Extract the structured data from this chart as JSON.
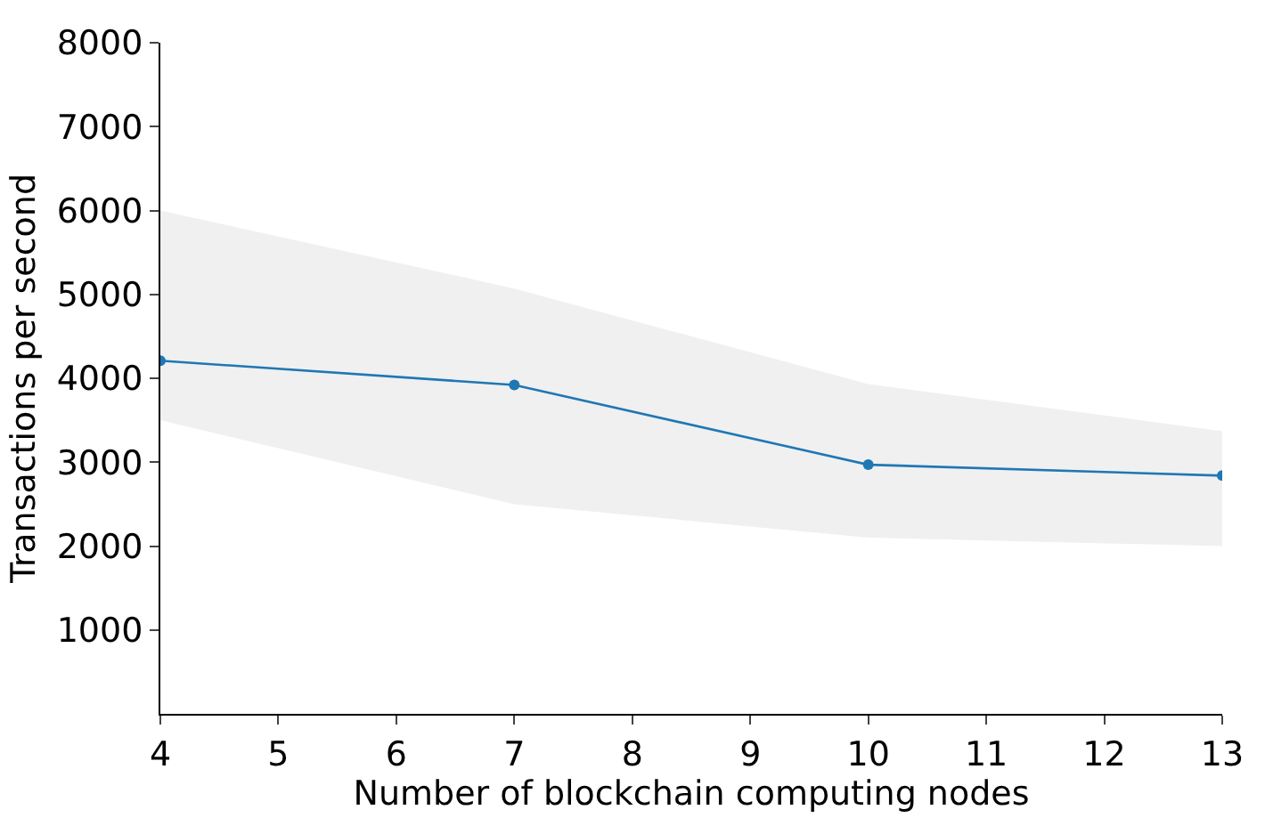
{
  "chart_data": {
    "type": "line",
    "xlabel": "Number of blockchain computing nodes",
    "ylabel": "Transactions per second",
    "x": [
      4,
      7,
      10,
      13
    ],
    "series": [
      {
        "color": "#1f77b4",
        "values": [
          4210,
          3920,
          2970,
          2840
        ],
        "lower": [
          3500,
          2500,
          2100,
          2000
        ],
        "upper": [
          6000,
          5070,
          3930,
          3370
        ]
      }
    ],
    "xlim": [
      4,
      13
    ],
    "xticks": [
      4,
      5,
      6,
      7,
      8,
      9,
      10,
      11,
      12,
      13
    ],
    "ylim": [
      0,
      8000
    ],
    "yticks": [
      1000,
      2000,
      3000,
      4000,
      5000,
      6000,
      7000,
      8000
    ],
    "marker": "circle",
    "line_style": "solid"
  }
}
